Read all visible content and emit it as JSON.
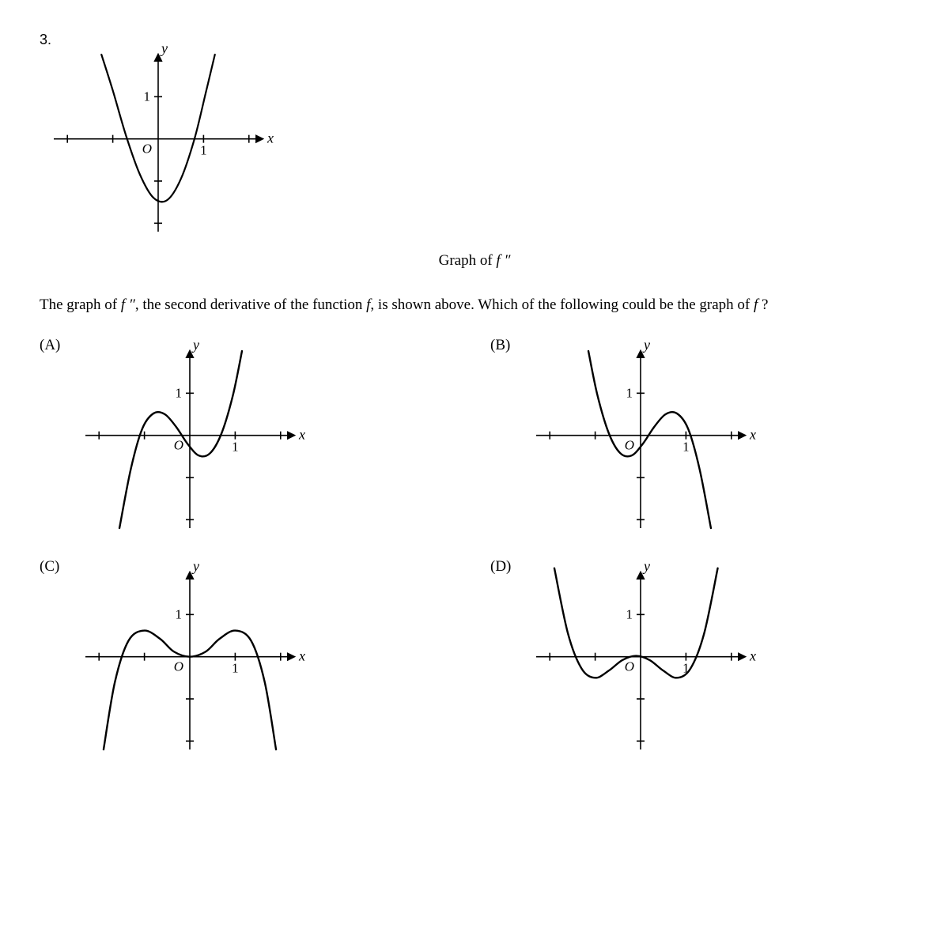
{
  "question_number": "3.",
  "top_graph": {
    "caption_prefix": "Graph of  ",
    "caption_symbol": "f ″",
    "y_label": "y",
    "x_label": "x",
    "origin_label": "O",
    "one_label": "1",
    "xlim": [
      -2.3,
      2.3
    ],
    "ylim": [
      -2.2,
      2.0
    ],
    "stroke": "#000000",
    "stroke_width": 2.2,
    "axis_width": 1.6,
    "tick_positions_x": [
      -2,
      -1,
      1,
      2
    ],
    "tick_positions_y": [
      -2,
      -1,
      1
    ],
    "curve": [
      [
        -1.25,
        2.0
      ],
      [
        -1.0,
        1.15
      ],
      [
        -0.7,
        0.05
      ],
      [
        -0.4,
        -0.85
      ],
      [
        -0.1,
        -1.4
      ],
      [
        0.2,
        -1.45
      ],
      [
        0.5,
        -0.95
      ],
      [
        0.8,
        0.0
      ],
      [
        1.05,
        1.1
      ],
      [
        1.25,
        2.0
      ]
    ]
  },
  "question_text_1": "The graph of  ",
  "question_sym1": "f ″",
  "question_text_2": ", the second derivative of the function ",
  "question_sym2": "f",
  "question_text_3": ", is shown above. Which of the following could be the graph of ",
  "question_sym3": "f ",
  "question_text_4": "?",
  "axis_common": {
    "y_label": "y",
    "x_label": "x",
    "origin_label": "O",
    "one_label": "1",
    "xlim": [
      -2.3,
      2.3
    ],
    "ylim": [
      -2.2,
      2.0
    ],
    "stroke": "#000000",
    "stroke_width": 2.4,
    "axis_width": 1.6,
    "tick_positions_x": [
      -2,
      -1,
      1,
      2
    ],
    "tick_positions_y": [
      -2,
      -1,
      1
    ]
  },
  "choices": {
    "A": {
      "label": "(A)",
      "curve": [
        [
          -1.55,
          -2.2
        ],
        [
          -1.3,
          -0.8
        ],
        [
          -1.05,
          0.15
        ],
        [
          -0.8,
          0.52
        ],
        [
          -0.55,
          0.5
        ],
        [
          -0.3,
          0.2
        ],
        [
          -0.05,
          -0.2
        ],
        [
          0.2,
          -0.48
        ],
        [
          0.45,
          -0.42
        ],
        [
          0.7,
          0.05
        ],
        [
          0.95,
          0.95
        ],
        [
          1.15,
          2.0
        ]
      ],
      "one_x_shown": true
    },
    "B": {
      "label": "(B)",
      "curve": [
        [
          -1.15,
          2.0
        ],
        [
          -0.95,
          0.95
        ],
        [
          -0.7,
          0.05
        ],
        [
          -0.45,
          -0.42
        ],
        [
          -0.2,
          -0.48
        ],
        [
          0.05,
          -0.2
        ],
        [
          0.3,
          0.2
        ],
        [
          0.55,
          0.5
        ],
        [
          0.8,
          0.52
        ],
        [
          1.05,
          0.15
        ],
        [
          1.3,
          -0.8
        ],
        [
          1.55,
          -2.2
        ]
      ],
      "one_x_shown": true,
      "one_x_pos": 1
    },
    "C": {
      "label": "(C)",
      "curve": [
        [
          -1.9,
          -2.2
        ],
        [
          -1.65,
          -0.6
        ],
        [
          -1.35,
          0.38
        ],
        [
          -1.0,
          0.62
        ],
        [
          -0.65,
          0.42
        ],
        [
          -0.35,
          0.12
        ],
        [
          0.0,
          0.0
        ],
        [
          0.35,
          0.12
        ],
        [
          0.65,
          0.42
        ],
        [
          1.0,
          0.62
        ],
        [
          1.35,
          0.38
        ],
        [
          1.65,
          -0.6
        ],
        [
          1.9,
          -2.2
        ]
      ],
      "one_x_shown": true,
      "one_x_pos": 1
    },
    "D": {
      "label": "(D)",
      "curve": [
        [
          -1.9,
          2.1
        ],
        [
          -1.6,
          0.55
        ],
        [
          -1.3,
          -0.28
        ],
        [
          -1.0,
          -0.5
        ],
        [
          -0.7,
          -0.33
        ],
        [
          -0.4,
          -0.08
        ],
        [
          -0.1,
          0.02
        ],
        [
          0.2,
          -0.08
        ],
        [
          0.5,
          -0.33
        ],
        [
          0.8,
          -0.5
        ],
        [
          1.1,
          -0.28
        ],
        [
          1.4,
          0.55
        ],
        [
          1.7,
          2.1
        ]
      ],
      "one_x_shown": true,
      "one_x_pos": 1
    }
  }
}
